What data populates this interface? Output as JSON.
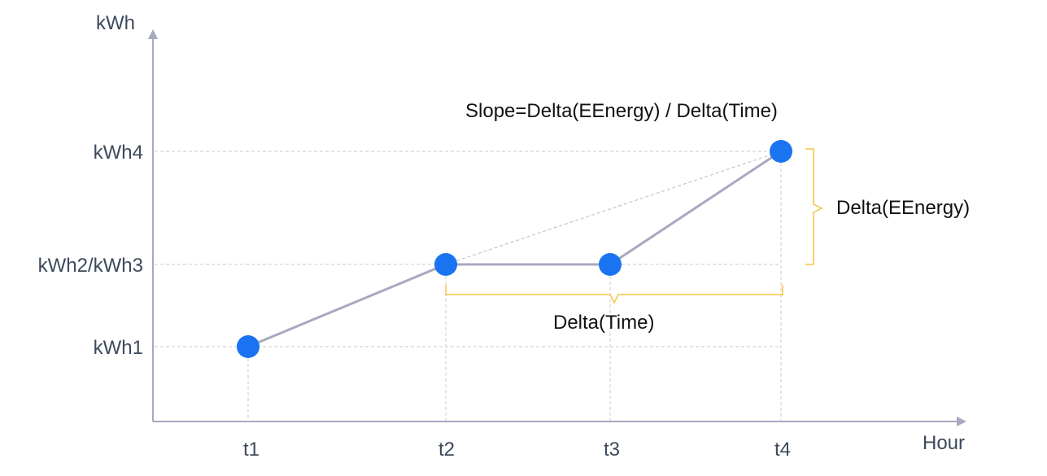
{
  "axes": {
    "y_title": "kWh",
    "x_title": "Hour"
  },
  "y_ticks": [
    "kWh1",
    "kWh2/kWh3",
    "kWh4"
  ],
  "x_ticks": [
    "t1",
    "t2",
    "t3",
    "t4"
  ],
  "points": [
    {
      "x": "t1",
      "y": "kWh1"
    },
    {
      "x": "t2",
      "y": "kWh2/kWh3"
    },
    {
      "x": "t3",
      "y": "kWh2/kWh3"
    },
    {
      "x": "t4",
      "y": "kWh4"
    }
  ],
  "annotations": {
    "slope": "Slope=Delta(EEnergy) / Delta(Time)",
    "delta_energy": "Delta(EEnergy)",
    "delta_time": "Delta(Time)"
  },
  "colors": {
    "axis": "#a7a9bf",
    "line": "#a7a9bf",
    "point": "#1a73f0",
    "guide": "#c8cad6",
    "bracket": "#f5c342",
    "label": "#3d4a5c",
    "annotation": "#111111"
  }
}
